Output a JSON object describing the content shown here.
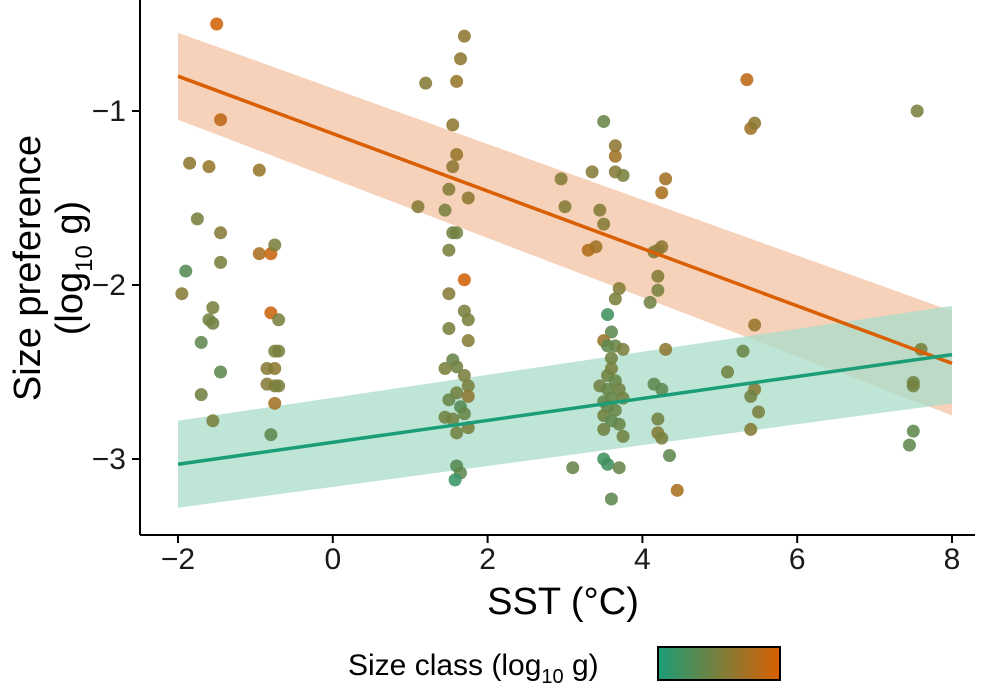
{
  "chart_data": {
    "type": "scatter",
    "xlabel": "SST (°C)",
    "ylabel_line1": "Size preference",
    "ylabel_line2": {
      "prefix": "(log",
      "sub": "10",
      "suffix": " g)"
    },
    "xlim": [
      -2.5,
      8.2
    ],
    "ylim": [
      -3.45,
      -0.35
    ],
    "xticks": [
      -2,
      0,
      2,
      4,
      6,
      8
    ],
    "xtick_labels": [
      "−2",
      "0",
      "2",
      "4",
      "6",
      "8"
    ],
    "yticks": [
      -3,
      -2,
      -1
    ],
    "ytick_labels": [
      "−3",
      "−2",
      "−1"
    ],
    "legend": {
      "title": {
        "prefix": "Size class (log",
        "sub": "10",
        "suffix": " g)"
      },
      "colorbar": [
        "#1b9e77",
        "#d95f02"
      ],
      "placement": "bottom"
    },
    "colors": {
      "low": "#1b9e77",
      "high": "#d95f02",
      "low_band": "#a8dcc8",
      "high_band": "#f4c3a4"
    },
    "fits": [
      {
        "name": "",
        "color": "#d95f02",
        "x": [
          -2,
          8
        ],
        "y": [
          -0.8,
          -2.45
        ],
        "ci_lower": [
          -1.05,
          -2.75
        ],
        "ci_upper": [
          -0.55,
          -2.15
        ]
      },
      {
        "name": "",
        "color": "#1b9e77",
        "x": [
          -2,
          8
        ],
        "y": [
          -3.03,
          -2.4
        ],
        "ci_lower": [
          -3.28,
          -2.68
        ],
        "ci_upper": [
          -2.78,
          -2.12
        ]
      }
    ],
    "points": [
      {
        "x": -1.5,
        "y": -0.5,
        "s": 0.95
      },
      {
        "x": -1.45,
        "y": -1.05,
        "s": 0.85
      },
      {
        "x": -1.85,
        "y": -1.3,
        "s": 0.6
      },
      {
        "x": -1.6,
        "y": -1.32,
        "s": 0.65
      },
      {
        "x": -1.75,
        "y": -1.62,
        "s": 0.5
      },
      {
        "x": -1.45,
        "y": -1.7,
        "s": 0.55
      },
      {
        "x": -1.9,
        "y": -1.92,
        "s": 0.3
      },
      {
        "x": -1.45,
        "y": -1.87,
        "s": 0.5
      },
      {
        "x": -1.95,
        "y": -2.05,
        "s": 0.55
      },
      {
        "x": -1.55,
        "y": -2.13,
        "s": 0.5
      },
      {
        "x": -1.6,
        "y": -2.2,
        "s": 0.45
      },
      {
        "x": -1.55,
        "y": -2.22,
        "s": 0.45
      },
      {
        "x": -1.7,
        "y": -2.33,
        "s": 0.35
      },
      {
        "x": -1.45,
        "y": -2.5,
        "s": 0.35
      },
      {
        "x": -1.7,
        "y": -2.63,
        "s": 0.45
      },
      {
        "x": -1.55,
        "y": -2.78,
        "s": 0.5
      },
      {
        "x": -0.95,
        "y": -1.34,
        "s": 0.65
      },
      {
        "x": -0.95,
        "y": -1.82,
        "s": 0.75
      },
      {
        "x": -0.8,
        "y": -1.82,
        "s": 0.9
      },
      {
        "x": -0.75,
        "y": -1.77,
        "s": 0.5
      },
      {
        "x": -0.8,
        "y": -2.16,
        "s": 0.92
      },
      {
        "x": -0.7,
        "y": -2.2,
        "s": 0.5
      },
      {
        "x": -0.75,
        "y": -2.38,
        "s": 0.5
      },
      {
        "x": -0.7,
        "y": -2.38,
        "s": 0.5
      },
      {
        "x": -0.75,
        "y": -2.48,
        "s": 0.6
      },
      {
        "x": -0.85,
        "y": -2.48,
        "s": 0.55
      },
      {
        "x": -0.75,
        "y": -2.58,
        "s": 0.5
      },
      {
        "x": -0.85,
        "y": -2.57,
        "s": 0.55
      },
      {
        "x": -0.7,
        "y": -2.58,
        "s": 0.5
      },
      {
        "x": -0.75,
        "y": -2.68,
        "s": 0.7
      },
      {
        "x": -0.8,
        "y": -2.86,
        "s": 0.35
      },
      {
        "x": 1.2,
        "y": -0.84,
        "s": 0.55
      },
      {
        "x": 1.1,
        "y": -1.55,
        "s": 0.55
      },
      {
        "x": 1.7,
        "y": -0.57,
        "s": 0.6
      },
      {
        "x": 1.65,
        "y": -0.7,
        "s": 0.6
      },
      {
        "x": 1.6,
        "y": -0.83,
        "s": 0.65
      },
      {
        "x": 1.55,
        "y": -1.08,
        "s": 0.6
      },
      {
        "x": 1.6,
        "y": -1.25,
        "s": 0.65
      },
      {
        "x": 1.55,
        "y": -1.32,
        "s": 0.6
      },
      {
        "x": 1.5,
        "y": -1.45,
        "s": 0.55
      },
      {
        "x": 1.75,
        "y": -1.5,
        "s": 0.6
      },
      {
        "x": 1.45,
        "y": -1.57,
        "s": 0.5
      },
      {
        "x": 1.55,
        "y": -1.7,
        "s": 0.45
      },
      {
        "x": 1.6,
        "y": -1.7,
        "s": 0.45
      },
      {
        "x": 1.5,
        "y": -1.8,
        "s": 0.5
      },
      {
        "x": 1.7,
        "y": -1.97,
        "s": 0.95
      },
      {
        "x": 1.5,
        "y": -2.05,
        "s": 0.55
      },
      {
        "x": 1.7,
        "y": -2.15,
        "s": 0.5
      },
      {
        "x": 1.75,
        "y": -2.2,
        "s": 0.5
      },
      {
        "x": 1.5,
        "y": -2.25,
        "s": 0.5
      },
      {
        "x": 1.75,
        "y": -2.32,
        "s": 0.55
      },
      {
        "x": 1.55,
        "y": -2.43,
        "s": 0.4
      },
      {
        "x": 1.6,
        "y": -2.47,
        "s": 0.45
      },
      {
        "x": 1.45,
        "y": -2.48,
        "s": 0.5
      },
      {
        "x": 1.7,
        "y": -2.52,
        "s": 0.5
      },
      {
        "x": 1.75,
        "y": -2.58,
        "s": 0.5
      },
      {
        "x": 1.6,
        "y": -2.62,
        "s": 0.45
      },
      {
        "x": 1.75,
        "y": -2.64,
        "s": 0.6
      },
      {
        "x": 1.5,
        "y": -2.66,
        "s": 0.4
      },
      {
        "x": 1.65,
        "y": -2.7,
        "s": 0.3
      },
      {
        "x": 1.7,
        "y": -2.74,
        "s": 0.4
      },
      {
        "x": 1.45,
        "y": -2.76,
        "s": 0.45
      },
      {
        "x": 1.55,
        "y": -2.77,
        "s": 0.45
      },
      {
        "x": 1.75,
        "y": -2.82,
        "s": 0.5
      },
      {
        "x": 1.6,
        "y": -2.85,
        "s": 0.45
      },
      {
        "x": 1.6,
        "y": -3.04,
        "s": 0.3
      },
      {
        "x": 1.65,
        "y": -3.08,
        "s": 0.35
      },
      {
        "x": 1.58,
        "y": -3.12,
        "s": 0.15
      },
      {
        "x": 2.95,
        "y": -1.39,
        "s": 0.55
      },
      {
        "x": 3.0,
        "y": -1.55,
        "s": 0.55
      },
      {
        "x": 3.1,
        "y": -3.05,
        "s": 0.4
      },
      {
        "x": 3.3,
        "y": -1.8,
        "s": 0.8
      },
      {
        "x": 3.35,
        "y": -1.35,
        "s": 0.55
      },
      {
        "x": 3.45,
        "y": -1.57,
        "s": 0.55
      },
      {
        "x": 3.5,
        "y": -1.65,
        "s": 0.55
      },
      {
        "x": 3.4,
        "y": -1.78,
        "s": 0.7
      },
      {
        "x": 3.5,
        "y": -1.06,
        "s": 0.4
      },
      {
        "x": 3.65,
        "y": -1.2,
        "s": 0.6
      },
      {
        "x": 3.65,
        "y": -1.26,
        "s": 0.7
      },
      {
        "x": 3.65,
        "y": -1.35,
        "s": 0.55
      },
      {
        "x": 3.75,
        "y": -1.37,
        "s": 0.5
      },
      {
        "x": 3.7,
        "y": -2.02,
        "s": 0.55
      },
      {
        "x": 3.65,
        "y": -2.08,
        "s": 0.5
      },
      {
        "x": 3.55,
        "y": -2.17,
        "s": 0.2
      },
      {
        "x": 3.6,
        "y": -2.27,
        "s": 0.35
      },
      {
        "x": 3.5,
        "y": -2.32,
        "s": 0.65
      },
      {
        "x": 3.55,
        "y": -2.35,
        "s": 0.35
      },
      {
        "x": 3.65,
        "y": -2.35,
        "s": 0.4
      },
      {
        "x": 3.75,
        "y": -2.37,
        "s": 0.5
      },
      {
        "x": 3.6,
        "y": -2.42,
        "s": 0.45
      },
      {
        "x": 3.6,
        "y": -2.48,
        "s": 0.5
      },
      {
        "x": 3.55,
        "y": -2.52,
        "s": 0.45
      },
      {
        "x": 3.65,
        "y": -2.55,
        "s": 0.4
      },
      {
        "x": 3.45,
        "y": -2.58,
        "s": 0.45
      },
      {
        "x": 3.55,
        "y": -2.6,
        "s": 0.4
      },
      {
        "x": 3.7,
        "y": -2.6,
        "s": 0.45
      },
      {
        "x": 3.6,
        "y": -2.65,
        "s": 0.4
      },
      {
        "x": 3.5,
        "y": -2.67,
        "s": 0.4
      },
      {
        "x": 3.75,
        "y": -2.65,
        "s": 0.45
      },
      {
        "x": 3.55,
        "y": -2.7,
        "s": 0.35
      },
      {
        "x": 3.65,
        "y": -2.72,
        "s": 0.4
      },
      {
        "x": 3.5,
        "y": -2.75,
        "s": 0.45
      },
      {
        "x": 3.6,
        "y": -2.78,
        "s": 0.35
      },
      {
        "x": 3.7,
        "y": -2.8,
        "s": 0.4
      },
      {
        "x": 3.5,
        "y": -2.83,
        "s": 0.45
      },
      {
        "x": 3.75,
        "y": -2.87,
        "s": 0.45
      },
      {
        "x": 3.5,
        "y": -3.0,
        "s": 0.2
      },
      {
        "x": 3.55,
        "y": -3.03,
        "s": 0.2
      },
      {
        "x": 3.7,
        "y": -3.05,
        "s": 0.4
      },
      {
        "x": 3.6,
        "y": -3.23,
        "s": 0.35
      },
      {
        "x": 4.3,
        "y": -1.39,
        "s": 0.7
      },
      {
        "x": 4.25,
        "y": -1.47,
        "s": 0.75
      },
      {
        "x": 4.2,
        "y": -1.8,
        "s": 0.6
      },
      {
        "x": 4.25,
        "y": -1.78,
        "s": 0.6
      },
      {
        "x": 4.15,
        "y": -1.81,
        "s": 0.55
      },
      {
        "x": 4.2,
        "y": -1.95,
        "s": 0.55
      },
      {
        "x": 4.2,
        "y": -2.03,
        "s": 0.5
      },
      {
        "x": 4.1,
        "y": -2.1,
        "s": 0.45
      },
      {
        "x": 4.3,
        "y": -2.37,
        "s": 0.6
      },
      {
        "x": 4.15,
        "y": -2.57,
        "s": 0.35
      },
      {
        "x": 4.25,
        "y": -2.6,
        "s": 0.35
      },
      {
        "x": 4.2,
        "y": -2.77,
        "s": 0.45
      },
      {
        "x": 4.2,
        "y": -2.85,
        "s": 0.55
      },
      {
        "x": 4.25,
        "y": -2.88,
        "s": 0.5
      },
      {
        "x": 4.35,
        "y": -2.98,
        "s": 0.35
      },
      {
        "x": 4.45,
        "y": -3.18,
        "s": 0.75
      },
      {
        "x": 5.1,
        "y": -2.5,
        "s": 0.45
      },
      {
        "x": 5.3,
        "y": -2.38,
        "s": 0.4
      },
      {
        "x": 5.35,
        "y": -0.82,
        "s": 0.85
      },
      {
        "x": 5.4,
        "y": -1.1,
        "s": 0.7
      },
      {
        "x": 5.45,
        "y": -1.07,
        "s": 0.6
      },
      {
        "x": 5.45,
        "y": -2.23,
        "s": 0.65
      },
      {
        "x": 5.45,
        "y": -2.6,
        "s": 0.55
      },
      {
        "x": 5.4,
        "y": -2.64,
        "s": 0.45
      },
      {
        "x": 5.5,
        "y": -2.73,
        "s": 0.5
      },
      {
        "x": 5.4,
        "y": -2.83,
        "s": 0.55
      },
      {
        "x": 7.55,
        "y": -1.0,
        "s": 0.5
      },
      {
        "x": 7.6,
        "y": -2.37,
        "s": 0.5
      },
      {
        "x": 7.5,
        "y": -2.56,
        "s": 0.45
      },
      {
        "x": 7.5,
        "y": -2.58,
        "s": 0.45
      },
      {
        "x": 7.5,
        "y": -2.84,
        "s": 0.35
      },
      {
        "x": 7.45,
        "y": -2.92,
        "s": 0.35
      }
    ]
  }
}
